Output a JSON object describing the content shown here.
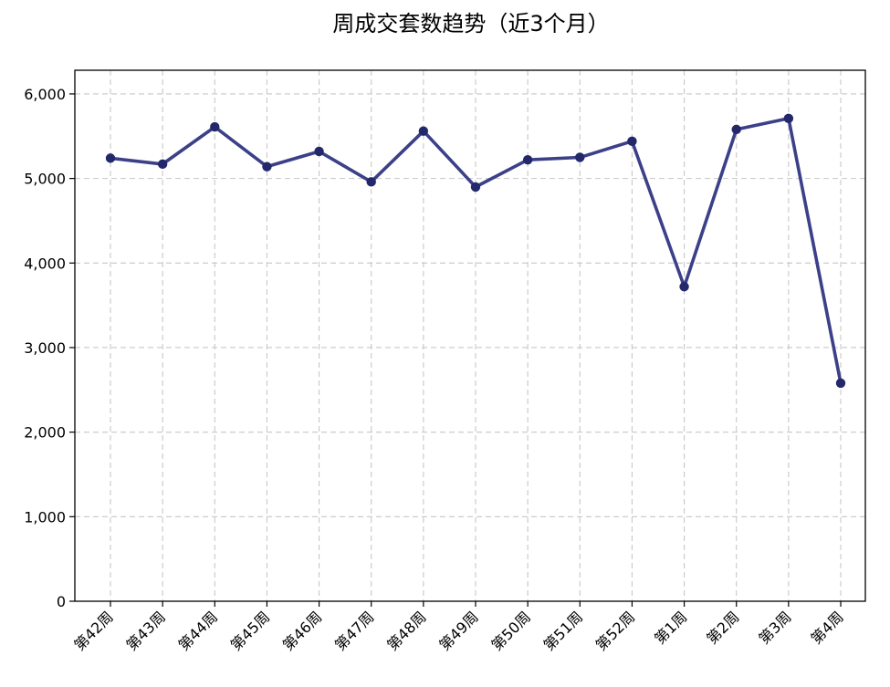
{
  "chart_data": {
    "type": "line",
    "title": "周成交套数趋势（近3个月）",
    "xlabel": "",
    "ylabel": "",
    "categories": [
      "第42周",
      "第43周",
      "第44周",
      "第45周",
      "第46周",
      "第47周",
      "第48周",
      "第49周",
      "第50周",
      "第51周",
      "第52周",
      "第1周",
      "第2周",
      "第3周",
      "第4周"
    ],
    "series": [
      {
        "values": [
          5240,
          5170,
          5610,
          5140,
          5320,
          4960,
          5560,
          4900,
          5220,
          5250,
          5440,
          3720,
          5580,
          5710,
          2580
        ]
      }
    ],
    "ylim": [
      0,
      6280
    ],
    "yticks": [
      0,
      1000,
      2000,
      3000,
      4000,
      5000,
      6000
    ],
    "ytick_labels": [
      "0",
      "1,000",
      "2,000",
      "3,000",
      "4,000",
      "5,000",
      "6,000"
    ],
    "grid": true,
    "line_color": "#3b4088",
    "marker_color": "#23286b"
  }
}
